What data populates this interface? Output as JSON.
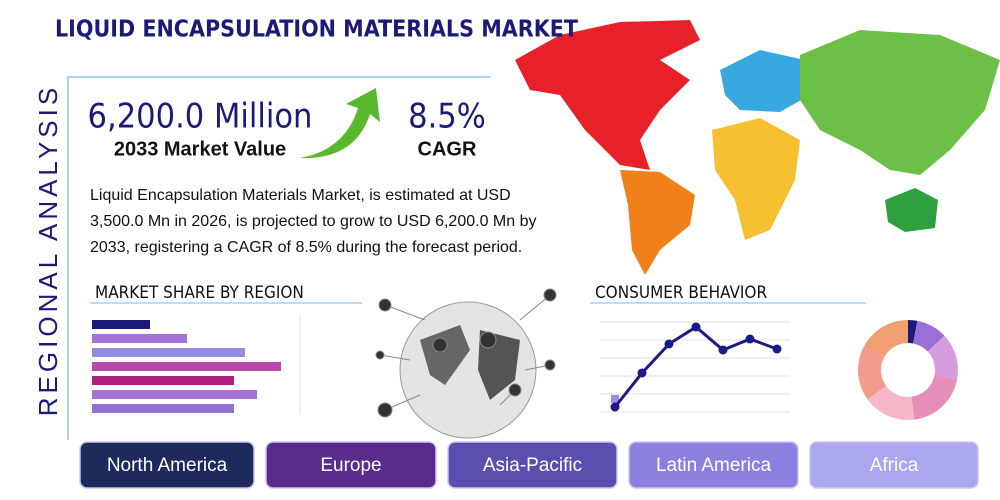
{
  "header": {
    "title": "LIQUID ENCAPSULATION MATERIALS MARKET",
    "side_label": "REGIONAL ANALYSIS"
  },
  "highlights": {
    "market_value": "6,200.0 Million",
    "market_value_label": "2033 Market Value",
    "cagr": "8.5%",
    "cagr_label": "CAGR"
  },
  "summary": "Liquid Encapsulation Materials Market, is estimated at USD 3,500.0 Mn in 2026, is projected to grow to USD 6,200.0 Mn by 2033, registering a CAGR of 8.5% during the forecast period.",
  "sections": {
    "market_share": "MARKET SHARE BY REGION",
    "consumer_behavior": "CONSUMER BEHAVIOR"
  },
  "regions": [
    "North America",
    "Europe",
    "Asia-Pacific",
    "Latin America",
    "Africa"
  ],
  "chart_data": [
    {
      "type": "bar",
      "orientation": "horizontal",
      "categories": [
        null,
        null,
        null,
        null,
        null,
        null,
        null
      ],
      "values": [
        58,
        95,
        153,
        189,
        142,
        165,
        142
      ],
      "xlim": [
        0,
        210
      ],
      "colors": [
        "#1c1a78",
        "#a374d6",
        "#958be0",
        "#b94aa9",
        "#b01f80",
        "#a374d6",
        "#9270d6"
      ]
    },
    {
      "type": "line",
      "categories": [
        null,
        null,
        null,
        null,
        null,
        null,
        null
      ],
      "values": [
        13,
        47,
        76,
        93,
        70,
        81,
        71
      ],
      "ylim": [
        0,
        100
      ],
      "color": "#1c1a86"
    },
    {
      "type": "pie",
      "categories": [
        null,
        null,
        null,
        null,
        null,
        null,
        null
      ],
      "values": [
        3,
        10,
        15,
        20,
        17,
        18,
        17
      ],
      "colors": [
        "#1c1a78",
        "#9b6fd8",
        "#d79be0",
        "#e58fb8",
        "#f6b8c8",
        "#f49b8e",
        "#f0a070"
      ]
    }
  ]
}
